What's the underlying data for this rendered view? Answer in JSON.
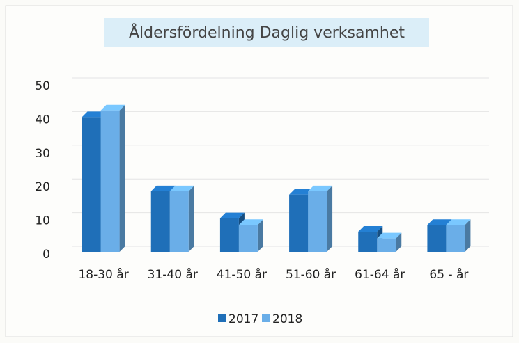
{
  "chart_data": {
    "type": "bar3d",
    "title": "Åldersfördelning Daglig verksamhet",
    "categories": [
      "18-30 år",
      "31-40 år",
      "41-50 år",
      "51-60 år",
      "61-64 år",
      "65 - år"
    ],
    "series": [
      {
        "name": "2017",
        "color": "#1f6fb8",
        "values": [
          40,
          18,
          10,
          17,
          6,
          8
        ]
      },
      {
        "name": "2018",
        "color": "#6aaee8",
        "values": [
          42,
          18,
          8,
          18,
          4,
          8
        ]
      }
    ],
    "ylim": [
      0,
      50
    ],
    "yticks": [
      0,
      10,
      20,
      30,
      40,
      50
    ],
    "grid": true,
    "legend": "bottom"
  }
}
